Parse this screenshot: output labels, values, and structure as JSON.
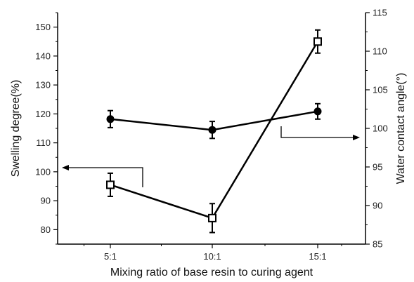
{
  "chart_data": {
    "type": "line",
    "categories": [
      "5:1",
      "10:1",
      "15:1"
    ],
    "xlabel": "Mixing ratio of base resin to curing agent",
    "ylabel_left": "Swelling degree(%)",
    "ylabel_right": "Water contact angle(°)",
    "ylim_left": [
      75,
      155
    ],
    "ylim_right": [
      85,
      115
    ],
    "yticks_left": [
      80,
      90,
      100,
      110,
      120,
      130,
      140,
      150
    ],
    "yticks_right": [
      85,
      90,
      95,
      100,
      105,
      110,
      115
    ],
    "grid": false,
    "series": [
      {
        "axis": "left",
        "marker": "open-square",
        "values": [
          95.5,
          84,
          145
        ],
        "errors": [
          4,
          5,
          4
        ]
      },
      {
        "axis": "right",
        "marker": "filled-circle",
        "values": [
          101.2,
          99.8,
          102.2
        ],
        "errors": [
          1.1,
          1.1,
          1.0
        ]
      }
    ],
    "annotations": [
      {
        "type": "arrow",
        "direction": "left",
        "points_to": "left axis",
        "series_axis": "left"
      },
      {
        "type": "arrow",
        "direction": "right",
        "points_to": "right axis",
        "series_axis": "right"
      }
    ]
  }
}
